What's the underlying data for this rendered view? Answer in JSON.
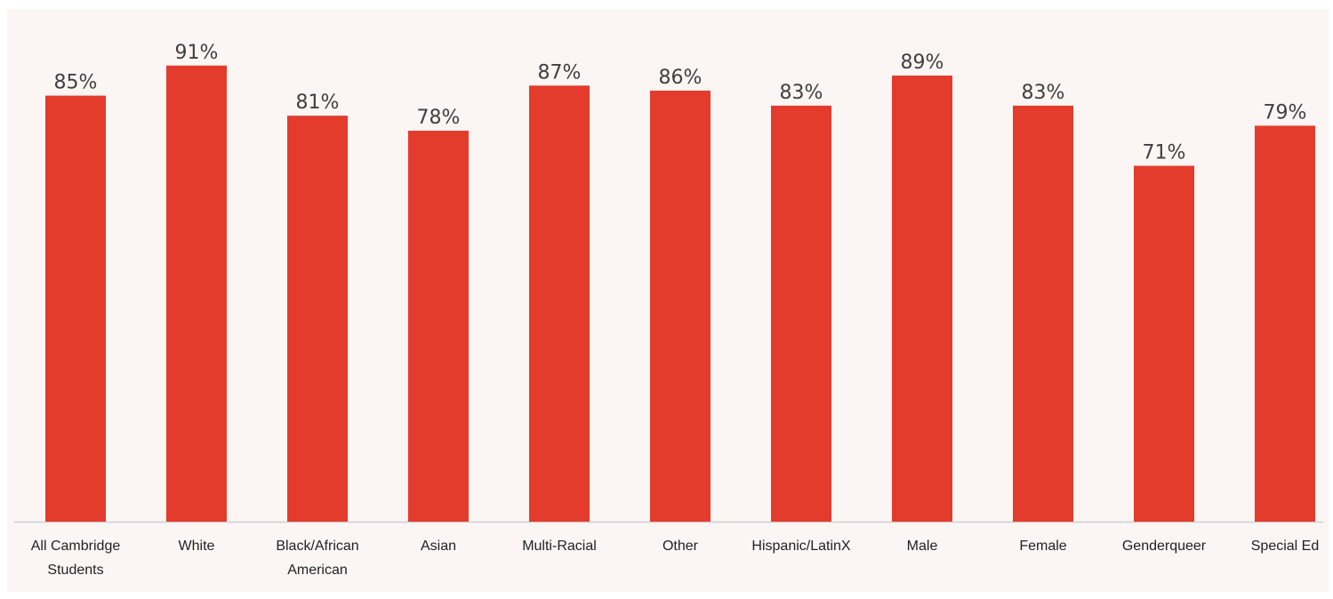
{
  "colors": {
    "bar": "#e33c2c",
    "background": "#fbf6f3",
    "axis": "#d0d0d0"
  },
  "chart_data": {
    "type": "bar",
    "title": "",
    "xlabel": "",
    "ylabel": "",
    "ylim": [
      0,
      100
    ],
    "grid": false,
    "legend": "none",
    "categories": [
      "All Cambridge Students",
      "White",
      "Black/African American",
      "Asian",
      "Multi-Racial",
      "Other",
      "Hispanic/LatinX",
      "Male",
      "Female",
      "Genderqueer",
      "Special Ed"
    ],
    "category_lines": [
      [
        "All Cambridge",
        "Students"
      ],
      [
        "White"
      ],
      [
        "Black/African",
        "American"
      ],
      [
        "Asian"
      ],
      [
        "Multi-Racial"
      ],
      [
        "Other"
      ],
      [
        "Hispanic/LatinX"
      ],
      [
        "Male"
      ],
      [
        "Female"
      ],
      [
        "Genderqueer"
      ],
      [
        "Special Ed"
      ]
    ],
    "values": [
      85,
      91,
      81,
      78,
      87,
      86,
      83,
      89,
      83,
      71,
      79
    ],
    "data_labels": [
      "85%",
      "91%",
      "81%",
      "78%",
      "87%",
      "86%",
      "83%",
      "89%",
      "83%",
      "71%",
      "79%"
    ]
  }
}
